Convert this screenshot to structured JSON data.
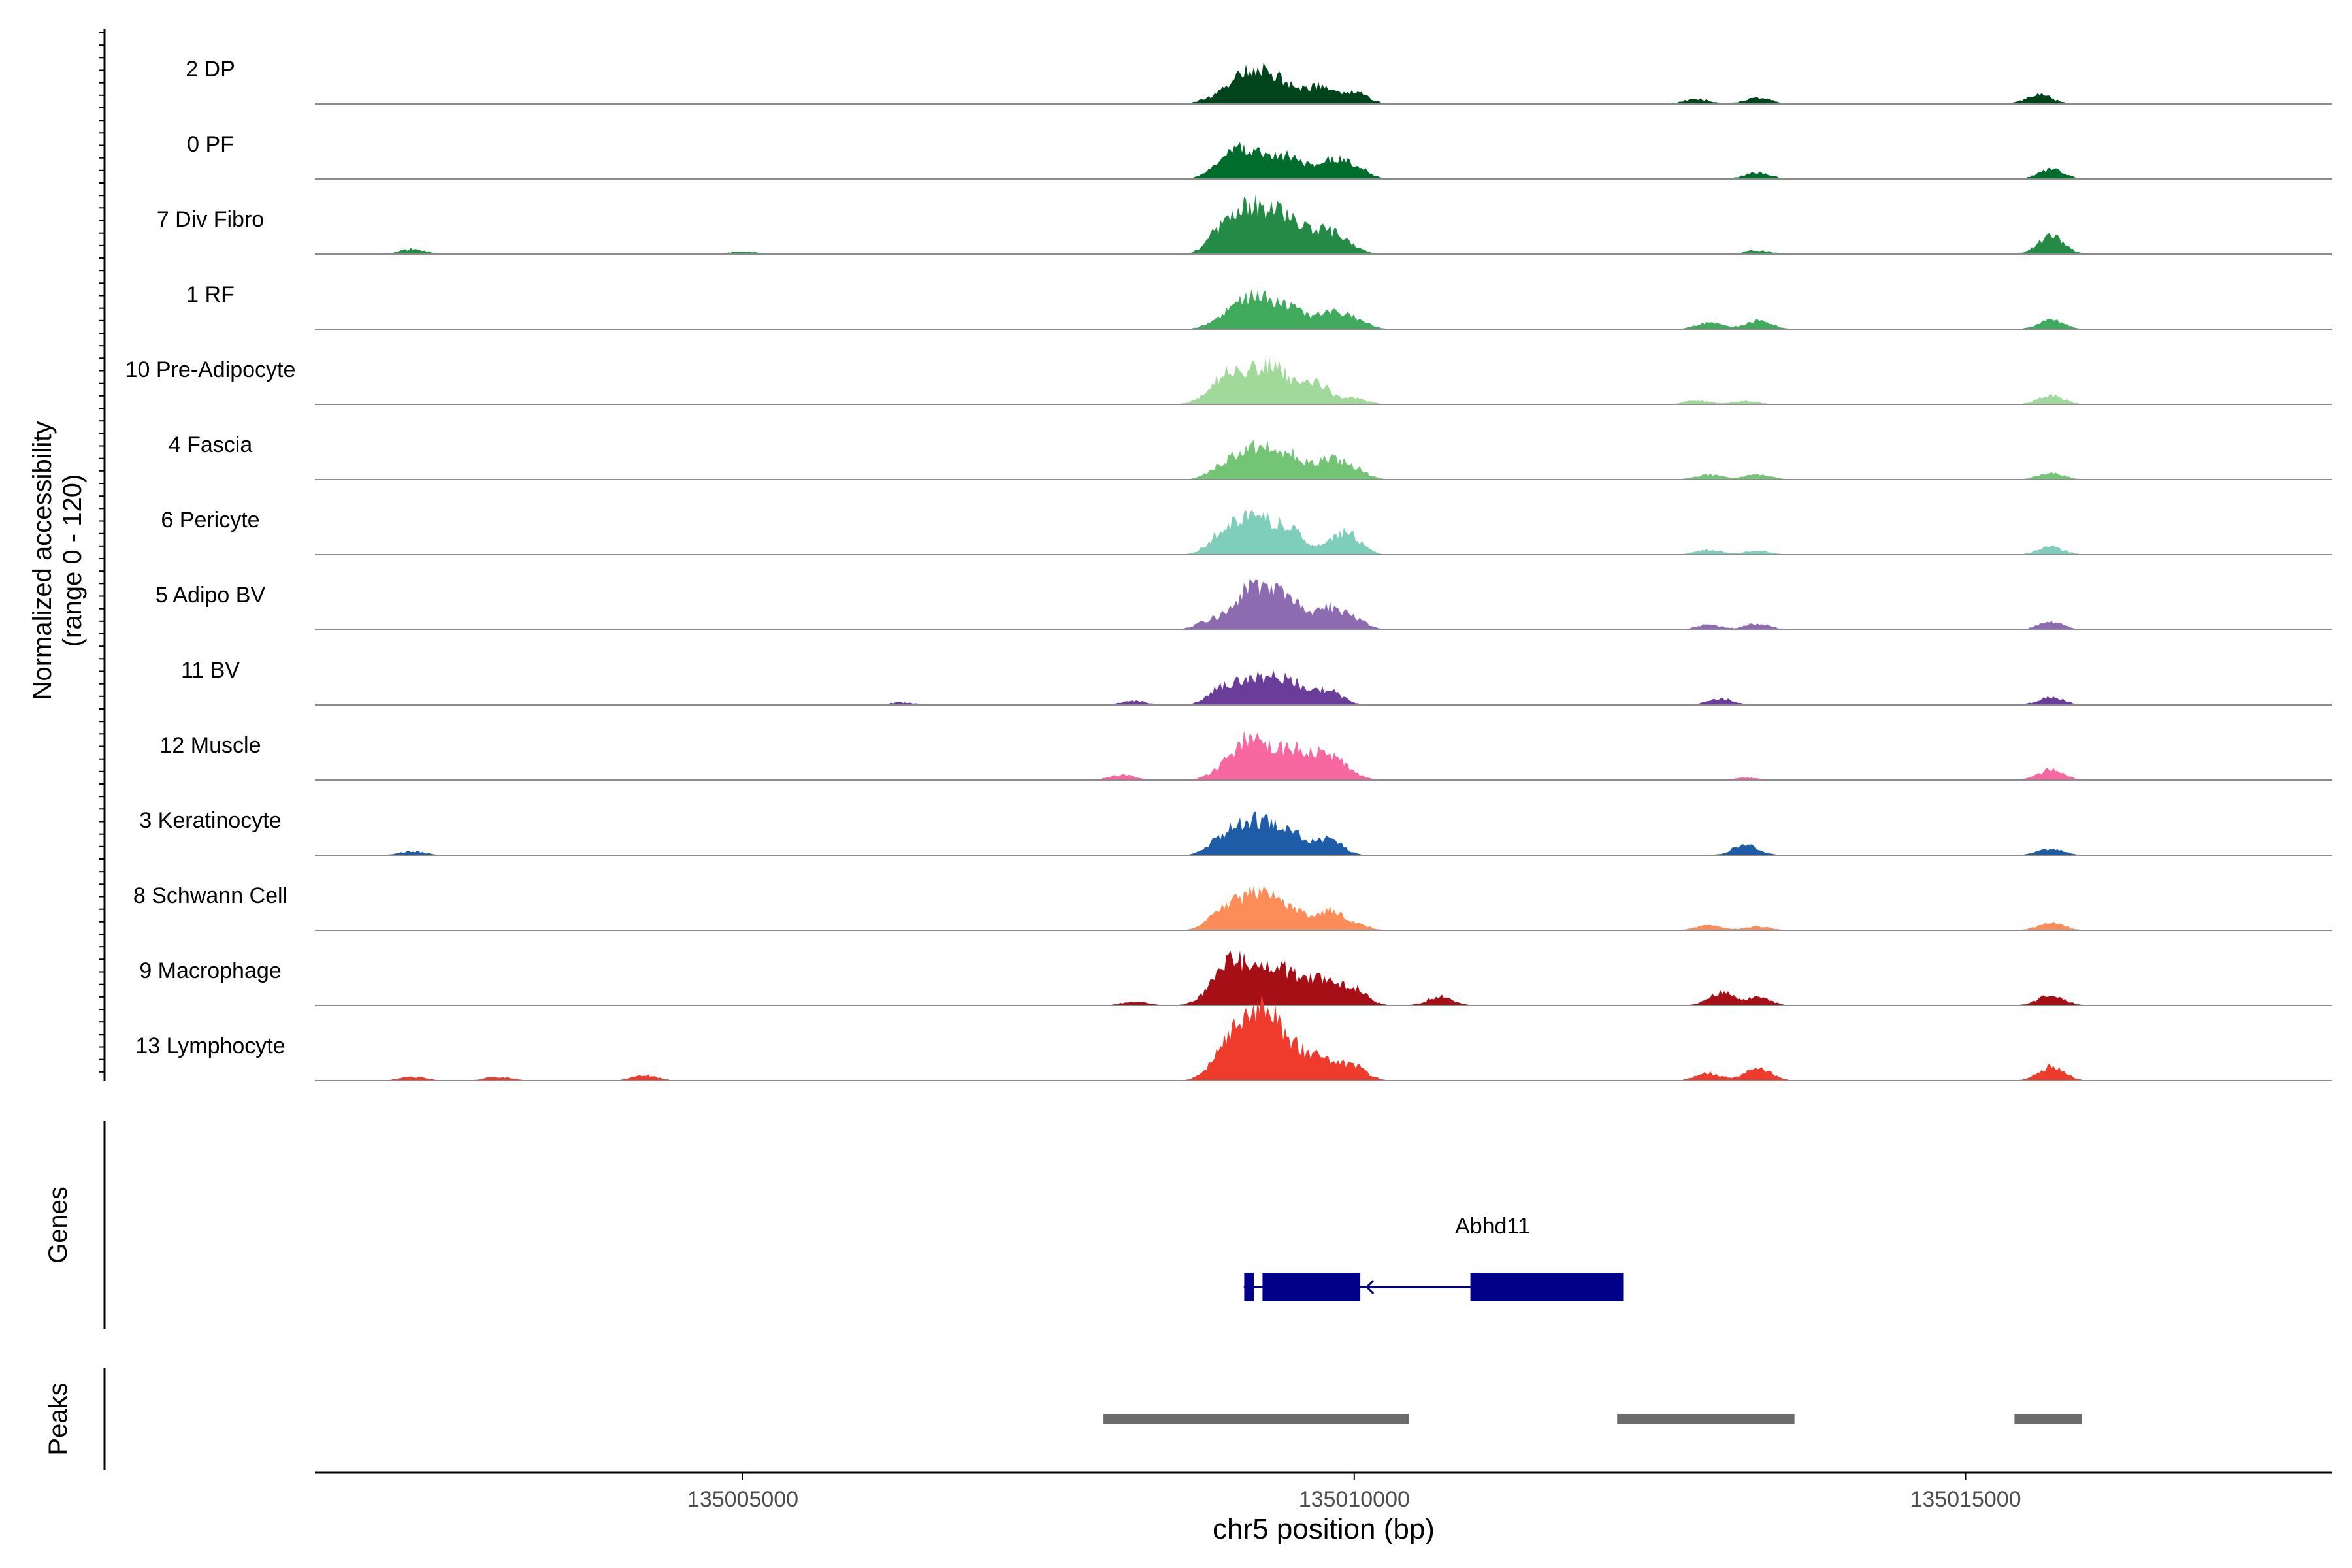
{
  "chart_data": {
    "type": "area",
    "title": "",
    "ylabel_line1": "Normalized accessibility",
    "ylabel_line2": "(range 0 - 120)",
    "y_range": [
      0,
      120
    ],
    "xlabel": "chr5 position (bp)",
    "x_range": [
      135001500,
      135018000
    ],
    "x_ticks": [
      135005000,
      135010000,
      135015000
    ],
    "x_tick_labels": [
      "135005000",
      "135010000",
      "135015000"
    ],
    "tracks": [
      {
        "name": "2 DP",
        "color": "#00441b",
        "peaks": [
          [
            135008800,
            4
          ],
          [
            135009100,
            40
          ],
          [
            135009350,
            38
          ],
          [
            135009700,
            26
          ],
          [
            135010000,
            20
          ],
          [
            135012800,
            8
          ],
          [
            135013300,
            10
          ],
          [
            135015600,
            15
          ]
        ]
      },
      {
        "name": "0 PF",
        "color": "#006d2c",
        "peaks": [
          [
            135008900,
            10
          ],
          [
            135009100,
            44
          ],
          [
            135009450,
            36
          ],
          [
            135009800,
            28
          ],
          [
            135010000,
            20
          ],
          [
            135013300,
            10
          ],
          [
            135015700,
            15
          ]
        ]
      },
      {
        "name": "7 Div Fibro",
        "color": "#238b45",
        "peaks": [
          [
            135002300,
            8
          ],
          [
            135005000,
            4
          ],
          [
            135008900,
            28
          ],
          [
            135009150,
            70
          ],
          [
            135009450,
            52
          ],
          [
            135009800,
            34
          ],
          [
            135013300,
            6
          ],
          [
            135015700,
            28
          ]
        ]
      },
      {
        "name": "1 RF",
        "color": "#41ab5d",
        "peaks": [
          [
            135008900,
            10
          ],
          [
            135009150,
            46
          ],
          [
            135009450,
            34
          ],
          [
            135009800,
            22
          ],
          [
            135010000,
            16
          ],
          [
            135012900,
            10
          ],
          [
            135013300,
            14
          ],
          [
            135015700,
            14
          ]
        ]
      },
      {
        "name": "10 Pre-Adipocyte",
        "color": "#a1d99b",
        "peaks": [
          [
            135009000,
            55
          ],
          [
            135009350,
            58
          ],
          [
            135009700,
            30
          ],
          [
            135010000,
            10
          ],
          [
            135012800,
            6
          ],
          [
            135013200,
            6
          ],
          [
            135015700,
            14
          ]
        ]
      },
      {
        "name": "4 Fascia",
        "color": "#74c476",
        "peaks": [
          [
            135008900,
            14
          ],
          [
            135009150,
            44
          ],
          [
            135009450,
            40
          ],
          [
            135009800,
            28
          ],
          [
            135010000,
            16
          ],
          [
            135012900,
            8
          ],
          [
            135013300,
            8
          ],
          [
            135015700,
            10
          ]
        ]
      },
      {
        "name": "6 Pericyte",
        "color": "#7fcdbb",
        "peaks": [
          [
            135008900,
            24
          ],
          [
            135009150,
            56
          ],
          [
            135009450,
            38
          ],
          [
            135009900,
            26
          ],
          [
            135010000,
            12
          ],
          [
            135012900,
            8
          ],
          [
            135013300,
            6
          ],
          [
            135015700,
            12
          ]
        ]
      },
      {
        "name": "5 Adipo BV",
        "color": "#8c6bb1",
        "peaks": [
          [
            135008800,
            12
          ],
          [
            135009150,
            62
          ],
          [
            135009450,
            48
          ],
          [
            135009800,
            30
          ],
          [
            135010000,
            16
          ],
          [
            135012900,
            8
          ],
          [
            135013300,
            10
          ],
          [
            135015700,
            12
          ]
        ]
      },
      {
        "name": "11 BV",
        "color": "#6a3d9a",
        "peaks": [
          [
            135006300,
            4
          ],
          [
            135008200,
            6
          ],
          [
            135008900,
            20
          ],
          [
            135009150,
            36
          ],
          [
            135009450,
            38
          ],
          [
            135009800,
            22
          ],
          [
            135013000,
            10
          ],
          [
            135015700,
            12
          ]
        ]
      },
      {
        "name": "12 Muscle",
        "color": "#f768a1",
        "peaks": [
          [
            135008100,
            8
          ],
          [
            135008900,
            8
          ],
          [
            135009150,
            64
          ],
          [
            135009500,
            44
          ],
          [
            135009800,
            34
          ],
          [
            135013200,
            4
          ],
          [
            135015700,
            16
          ]
        ]
      },
      {
        "name": "3 Keratinocyte",
        "color": "#1f5ca8",
        "peaks": [
          [
            135002300,
            6
          ],
          [
            135008900,
            20
          ],
          [
            135009150,
            50
          ],
          [
            135009450,
            36
          ],
          [
            135009800,
            24
          ],
          [
            135013200,
            16
          ],
          [
            135015700,
            10
          ]
        ]
      },
      {
        "name": "8 Schwann Cell",
        "color": "#fc8d59",
        "peaks": [
          [
            135008900,
            24
          ],
          [
            135009150,
            52
          ],
          [
            135009450,
            36
          ],
          [
            135009800,
            26
          ],
          [
            135010000,
            10
          ],
          [
            135012900,
            8
          ],
          [
            135013300,
            6
          ],
          [
            135015700,
            12
          ]
        ]
      },
      {
        "name": "9 Macrophage",
        "color": "#a50f15",
        "peaks": [
          [
            135008200,
            6
          ],
          [
            135009000,
            70
          ],
          [
            135009350,
            58
          ],
          [
            135009700,
            40
          ],
          [
            135010000,
            24
          ],
          [
            135010700,
            14
          ],
          [
            135013000,
            20
          ],
          [
            135013300,
            12
          ],
          [
            135015700,
            16
          ]
        ]
      },
      {
        "name": "13 Lymphocyte",
        "color": "#ef3b2c",
        "peaks": [
          [
            135002300,
            6
          ],
          [
            135003000,
            6
          ],
          [
            135004200,
            8
          ],
          [
            135008900,
            20
          ],
          [
            135009100,
            90
          ],
          [
            135009350,
            78
          ],
          [
            135009700,
            34
          ],
          [
            135010000,
            20
          ],
          [
            135012900,
            12
          ],
          [
            135013300,
            20
          ],
          [
            135015700,
            22
          ]
        ]
      }
    ],
    "genes": {
      "label": "Genes",
      "items": [
        {
          "name": "Abhd11",
          "strand": "-",
          "start": 135009100,
          "end": 135012200,
          "exons": [
            [
              135009100,
              135009180
            ],
            [
              135009250,
              135010050
            ],
            [
              135010950,
              135012200
            ]
          ]
        }
      ]
    },
    "peaks_track": {
      "label": "Peaks",
      "color": "#6b6b6b",
      "regions": [
        [
          135007950,
          135010450
        ],
        [
          135012150,
          135013600
        ],
        [
          135015400,
          135015950
        ]
      ]
    }
  }
}
